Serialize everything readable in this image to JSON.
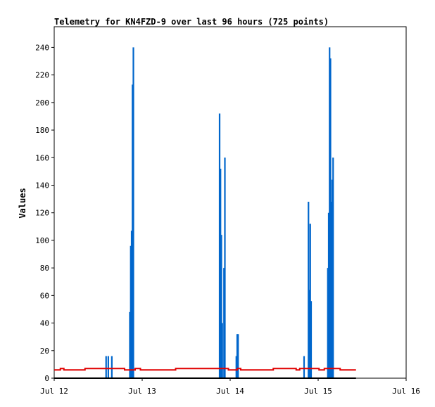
{
  "chart_data": {
    "type": "line",
    "title": "Telemetry for KN4FZD-9 over last 96 hours (725 points)",
    "ylabel": "Values",
    "xlabel": "",
    "xlim": [
      0,
      4
    ],
    "ylim": [
      0,
      255
    ],
    "x_unit": "days since Jul 12 00:00",
    "x_ticks": [
      {
        "value": 0,
        "label": "Jul 12"
      },
      {
        "value": 1,
        "label": "Jul 13"
      },
      {
        "value": 2,
        "label": "Jul 14"
      },
      {
        "value": 3,
        "label": "Jul 15"
      },
      {
        "value": 4,
        "label": "Jul 16"
      }
    ],
    "y_ticks": [
      0,
      20,
      40,
      60,
      80,
      100,
      120,
      140,
      160,
      180,
      200,
      220,
      240
    ],
    "grid": false,
    "series": [
      {
        "color": "#0066cc",
        "style": "spikes",
        "points": [
          [
            0.59,
            16
          ],
          [
            0.615,
            16
          ],
          [
            0.655,
            16
          ],
          [
            0.86,
            48
          ],
          [
            0.87,
            96
          ],
          [
            0.88,
            107
          ],
          [
            0.89,
            213
          ],
          [
            0.9,
            240
          ],
          [
            1.88,
            192
          ],
          [
            1.89,
            152
          ],
          [
            1.9,
            104
          ],
          [
            1.91,
            40
          ],
          [
            1.93,
            80
          ],
          [
            1.94,
            160
          ],
          [
            2.07,
            16
          ],
          [
            2.08,
            32
          ],
          [
            2.09,
            32
          ],
          [
            2.84,
            16
          ],
          [
            2.89,
            128
          ],
          [
            2.9,
            64
          ],
          [
            2.91,
            112
          ],
          [
            2.92,
            56
          ],
          [
            3.11,
            80
          ],
          [
            3.12,
            120
          ],
          [
            3.13,
            240
          ],
          [
            3.14,
            232
          ],
          [
            3.15,
            128
          ],
          [
            3.16,
            144
          ],
          [
            3.17,
            160
          ]
        ]
      },
      {
        "color": "#e00000",
        "style": "step",
        "points": [
          [
            0.0,
            6
          ],
          [
            0.07,
            7
          ],
          [
            0.11,
            6
          ],
          [
            0.35,
            7
          ],
          [
            0.62,
            7
          ],
          [
            0.8,
            6
          ],
          [
            0.92,
            7
          ],
          [
            0.98,
            6
          ],
          [
            1.38,
            7
          ],
          [
            1.98,
            6
          ],
          [
            2.08,
            7
          ],
          [
            2.12,
            6
          ],
          [
            2.49,
            7
          ],
          [
            2.75,
            6
          ],
          [
            2.79,
            7
          ],
          [
            3.01,
            6
          ],
          [
            3.07,
            7
          ],
          [
            3.25,
            6
          ],
          [
            3.43,
            6
          ]
        ]
      },
      {
        "color": "#000000",
        "style": "line",
        "points": [
          [
            0.0,
            0
          ],
          [
            3.43,
            0
          ]
        ]
      }
    ]
  }
}
